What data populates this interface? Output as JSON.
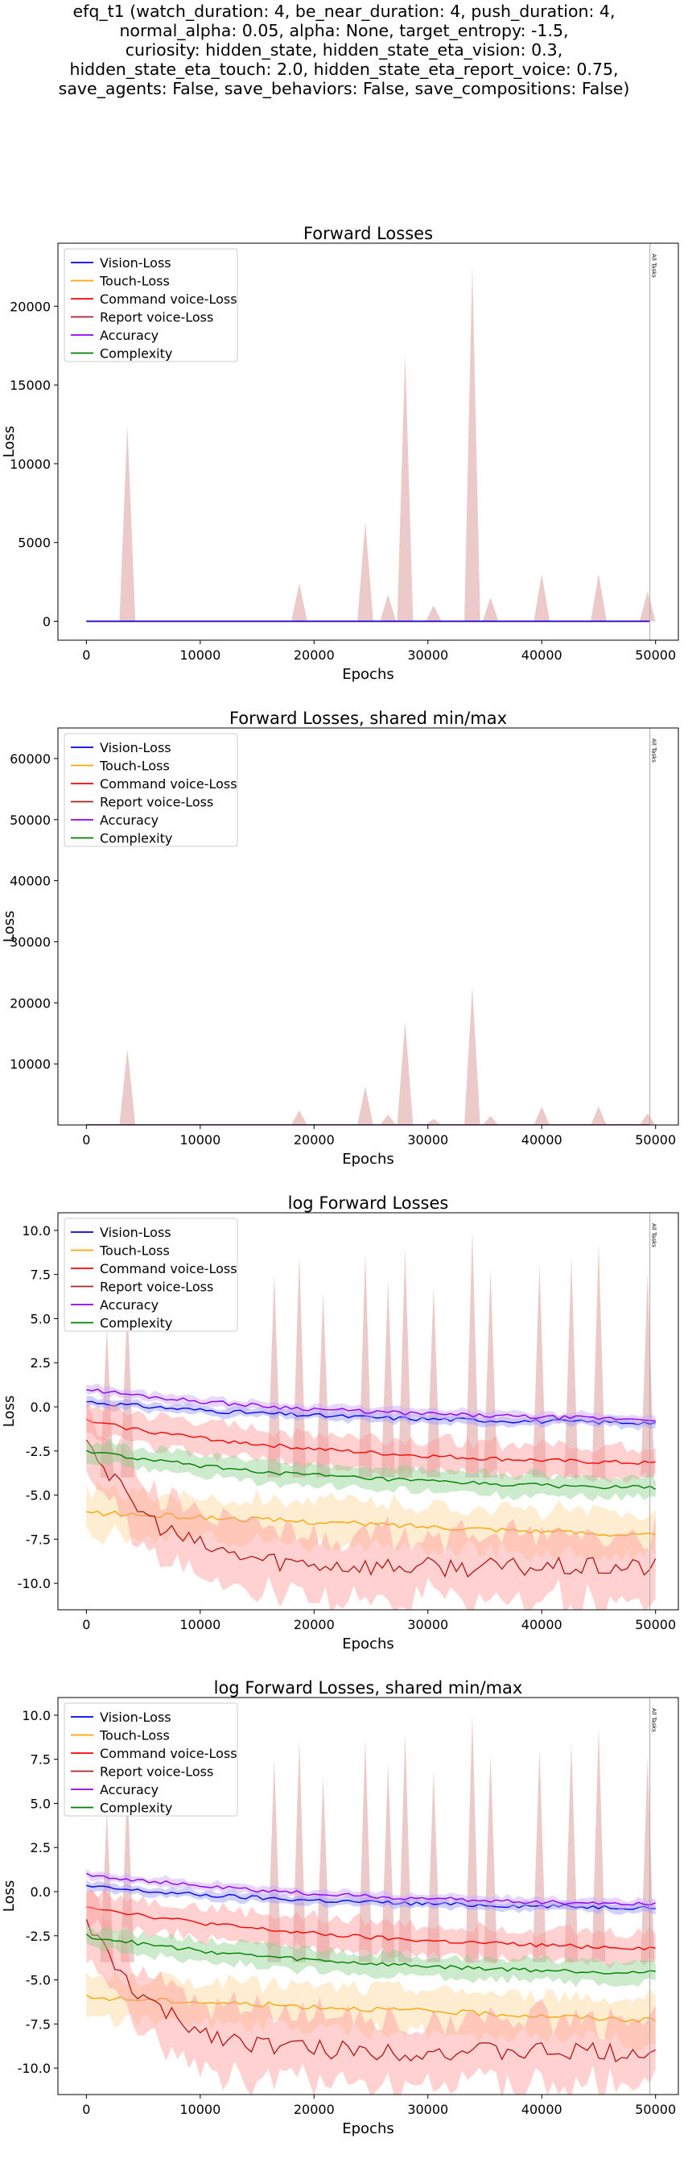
{
  "suptitle": "efq_t1 (watch_duration: 4, be_near_duration: 4, push_duration: 4,\nnormal_alpha: 0.05, alpha: None, target_entropy: -1.5,\ncuriosity: hidden_state, hidden_state_eta_vision: 0.3,\nhidden_state_eta_touch: 2.0, hidden_state_eta_report_voice: 0.75,\nsave_agents: False, save_behaviors: False, save_compositions: False)",
  "colors": {
    "vision": "#0000ff",
    "touch": "#ffa500",
    "command": "#ff0000",
    "report": "#b22222",
    "accuracy": "#8b00ff",
    "complexity": "#008000",
    "spike_fill": "#e6b8b8"
  },
  "legend": [
    "Vision-Loss",
    "Touch-Loss",
    "Command voice-Loss",
    "Report voice-Loss",
    "Accuracy",
    "Complexity"
  ],
  "vline_label": "All Tasks",
  "chart_data": [
    {
      "type": "line",
      "title": "Forward Losses",
      "xlabel": "Epochs",
      "ylabel": "Loss",
      "xlim": [
        -2500,
        52000
      ],
      "ylim": [
        -1200,
        24000
      ],
      "xticks": [
        "0",
        "10000",
        "20000",
        "30000",
        "40000",
        "50000"
      ],
      "yticks": [
        "0",
        "5000",
        "10000",
        "15000",
        "20000"
      ],
      "vline_x": 49500,
      "spikes": [
        [
          3600,
          12500
        ],
        [
          18700,
          2400
        ],
        [
          24500,
          6300
        ],
        [
          26500,
          1700
        ],
        [
          28000,
          17000
        ],
        [
          30500,
          1000
        ],
        [
          33900,
          22600
        ],
        [
          35500,
          1500
        ],
        [
          40000,
          3000
        ],
        [
          45000,
          3000
        ],
        [
          49300,
          1900
        ]
      ],
      "log_scale": false
    },
    {
      "type": "line",
      "title": "Forward Losses, shared min/max",
      "xlabel": "Epochs",
      "ylabel": "Loss",
      "xlim": [
        -2500,
        52000
      ],
      "ylim": [
        0,
        65000
      ],
      "xticks": [
        "0",
        "10000",
        "20000",
        "30000",
        "40000",
        "50000"
      ],
      "yticks": [
        "10000",
        "20000",
        "30000",
        "40000",
        "50000",
        "60000"
      ],
      "vline_x": 49500,
      "spikes": [
        [
          3600,
          12500
        ],
        [
          18700,
          2400
        ],
        [
          24500,
          6300
        ],
        [
          26500,
          1700
        ],
        [
          28000,
          17000
        ],
        [
          30500,
          1000
        ],
        [
          33900,
          22600
        ],
        [
          35500,
          1500
        ],
        [
          40000,
          3000
        ],
        [
          45000,
          3000
        ],
        [
          49300,
          1900
        ]
      ],
      "log_scale": false
    },
    {
      "type": "line",
      "title": "log Forward Losses",
      "xlabel": "Epochs",
      "ylabel": "Loss",
      "xlim": [
        -2500,
        52000
      ],
      "ylim": [
        -11.5,
        11
      ],
      "xticks": [
        "0",
        "10000",
        "20000",
        "30000",
        "40000",
        "50000"
      ],
      "yticks": [
        "-10.0",
        "-7.5",
        "-5.0",
        "-2.5",
        "0.0",
        "2.5",
        "5.0",
        "7.5",
        "10.0"
      ],
      "vline_x": 49500,
      "log_scale": true,
      "series": [
        {
          "name": "Vision-Loss",
          "start": 0.3,
          "end": -0.9
        },
        {
          "name": "Touch-Loss",
          "start": -6.0,
          "end": -7.3
        },
        {
          "name": "Command voice-Loss",
          "start": -0.8,
          "end": -3.2
        },
        {
          "name": "Report voice-Loss",
          "start": -1.5,
          "end": -9.1
        },
        {
          "name": "Accuracy",
          "start": 1.0,
          "end": -0.7
        },
        {
          "name": "Complexity",
          "start": -2.5,
          "end": -4.6
        }
      ]
    },
    {
      "type": "line",
      "title": "log Forward Losses, shared min/max",
      "xlabel": "Epochs",
      "ylabel": "Loss",
      "xlim": [
        -2500,
        52000
      ],
      "ylim": [
        -11.5,
        11
      ],
      "xticks": [
        "0",
        "10000",
        "20000",
        "30000",
        "40000",
        "50000"
      ],
      "yticks": [
        "-10.0",
        "-7.5",
        "-5.0",
        "-2.5",
        "0.0",
        "2.5",
        "5.0",
        "7.5",
        "10.0"
      ],
      "vline_x": 49500,
      "log_scale": true,
      "series": [
        {
          "name": "Vision-Loss",
          "start": 0.3,
          "end": -0.9
        },
        {
          "name": "Touch-Loss",
          "start": -6.0,
          "end": -7.3
        },
        {
          "name": "Command voice-Loss",
          "start": -0.8,
          "end": -3.2
        },
        {
          "name": "Report voice-Loss",
          "start": -1.5,
          "end": -9.1
        },
        {
          "name": "Accuracy",
          "start": 1.0,
          "end": -0.7
        },
        {
          "name": "Complexity",
          "start": -2.5,
          "end": -4.6
        }
      ]
    }
  ]
}
